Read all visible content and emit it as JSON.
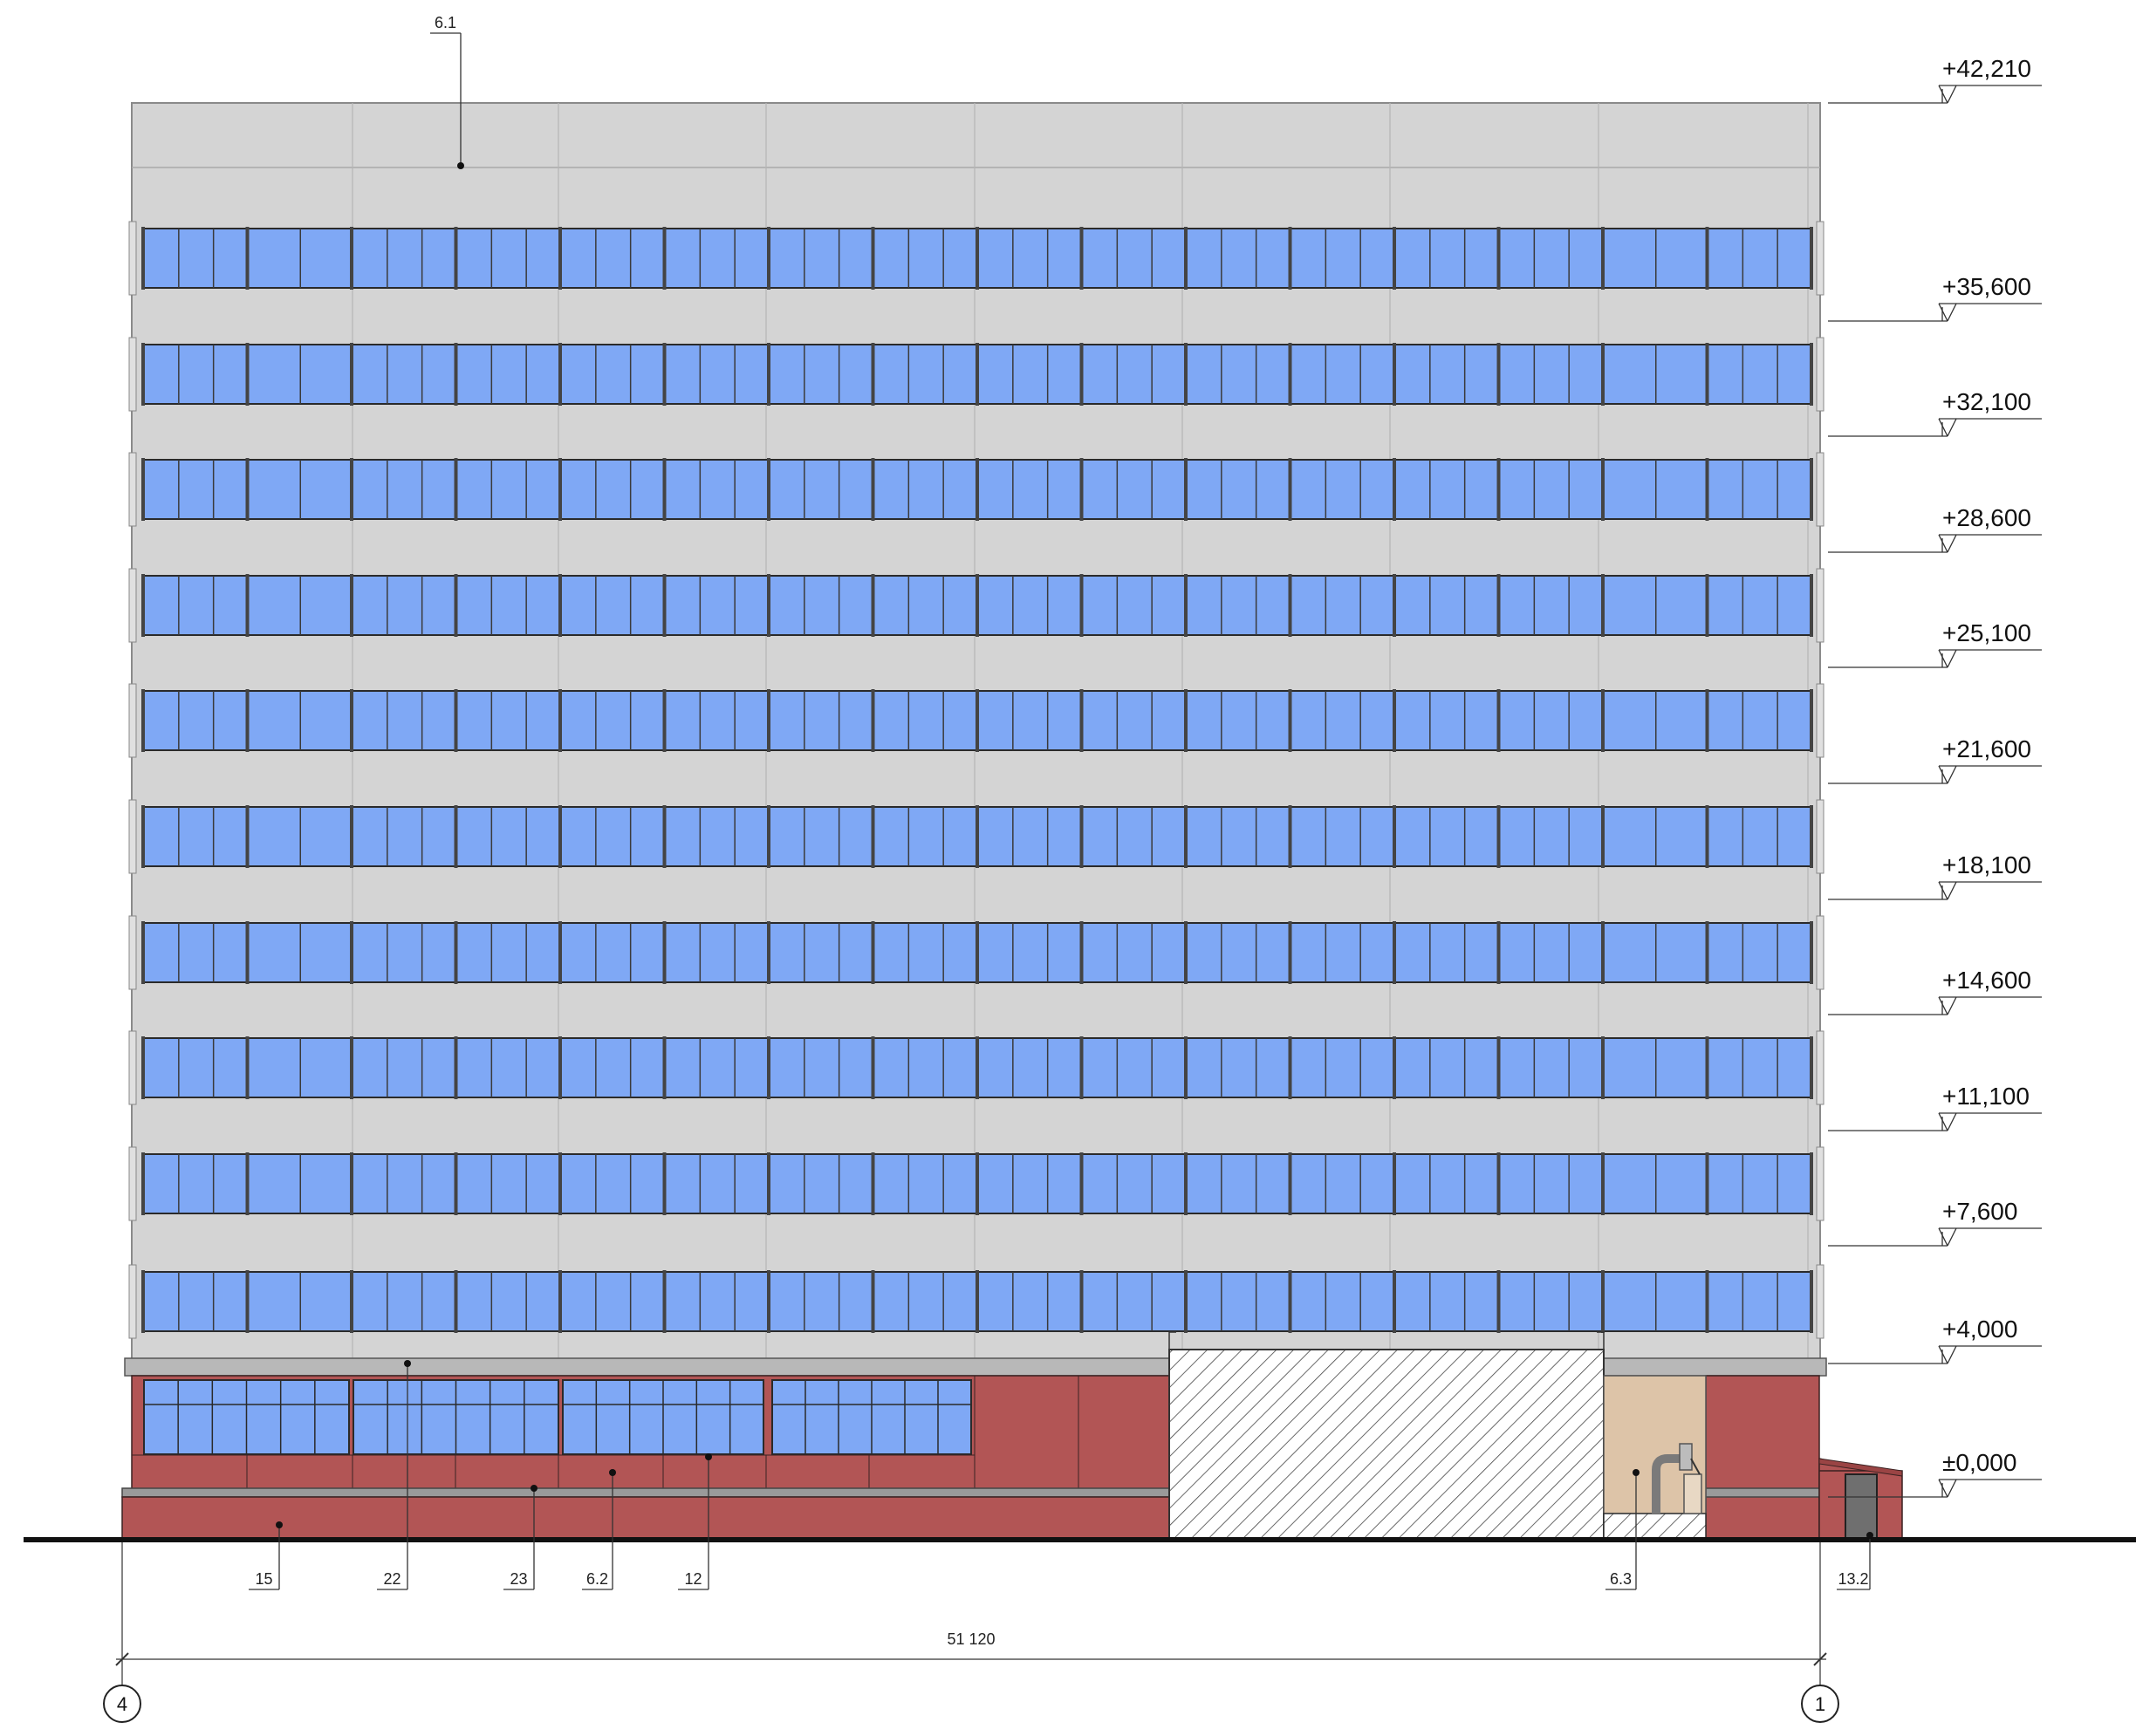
{
  "drawing": {
    "levels": [
      "+42,210",
      "+35,600",
      "+32,100",
      "+28,600",
      "+25,100",
      "+21,600",
      "+18,100",
      "+14,600",
      "+11,100",
      "+7,600",
      "+4,000",
      "±0,000"
    ],
    "callouts": [
      "6.1",
      "15",
      "22",
      "23",
      "6.2",
      "12",
      "6.3",
      "13.2"
    ],
    "dimension": "51 120",
    "axes": [
      "4",
      "1"
    ],
    "colors": {
      "facade": "#d4d4d4",
      "glass": "#7fa8f5",
      "brick": "#b25555",
      "hatch_fill": "#ffffff",
      "vestibule": "#ddc4a8",
      "line": "#1a1a1a"
    }
  }
}
